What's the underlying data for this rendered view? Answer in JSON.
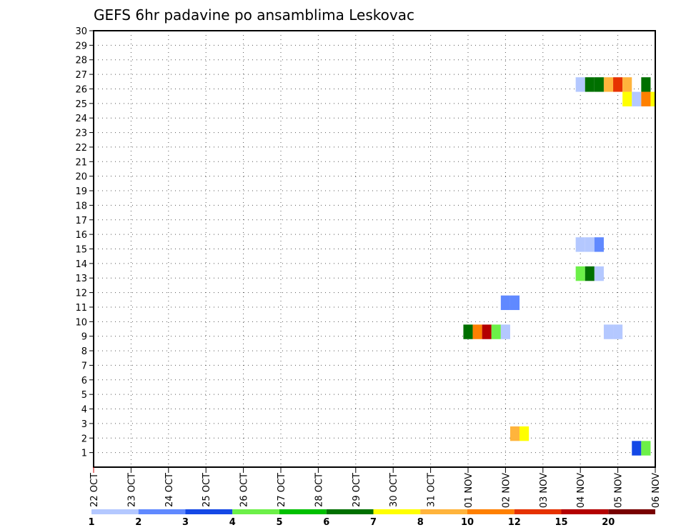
{
  "chart_data": {
    "type": "heatmap",
    "title": "GEFS 6hr padavine po ansamblima Leskovac",
    "xlabel": "",
    "ylabel": "",
    "x_unit": "days since 22 OCT 00Z (6-hourly steps)",
    "xlim": [
      0,
      15
    ],
    "ylim": [
      0,
      30
    ],
    "x_tick_labels": [
      "22 OCT",
      "23 OCT",
      "24 OCT",
      "25 OCT",
      "26 OCT",
      "27 OCT",
      "28 OCT",
      "29 OCT",
      "30 OCT",
      "31 OCT",
      "01 NOV",
      "02 NOV",
      "03 NOV",
      "04 NOV",
      "05 NOV",
      "06 NOV"
    ],
    "y_ticks": [
      1,
      2,
      3,
      4,
      5,
      6,
      7,
      8,
      9,
      10,
      11,
      12,
      13,
      14,
      15,
      16,
      17,
      18,
      19,
      20,
      21,
      22,
      23,
      24,
      25,
      26,
      27,
      28,
      29,
      30
    ],
    "grid": true,
    "colorbar": {
      "labels": [
        "1",
        "2",
        "3",
        "4",
        "5",
        "6",
        "7",
        "8",
        "10",
        "12",
        "15",
        "20"
      ],
      "colors": [
        "#b4c8ff",
        "#6089ff",
        "#1448e6",
        "#6cf048",
        "#00c000",
        "#007000",
        "#ffff00",
        "#ffb43c",
        "#ff8000",
        "#e63200",
        "#b40000",
        "#780000"
      ],
      "bounds": [
        1,
        2,
        3,
        4,
        5,
        6,
        7,
        8,
        10,
        12,
        15,
        20
      ]
    },
    "cells": [
      {
        "t": 13.0,
        "member": 26,
        "value": 1.5
      },
      {
        "t": 13.25,
        "member": 26,
        "value": 6.5
      },
      {
        "t": 13.5,
        "member": 26,
        "value": 6.5
      },
      {
        "t": 13.75,
        "member": 26,
        "value": 9
      },
      {
        "t": 14.0,
        "member": 26,
        "value": 13
      },
      {
        "t": 14.25,
        "member": 26,
        "value": 9
      },
      {
        "t": 14.75,
        "member": 26,
        "value": 6.5
      },
      {
        "t": 14.25,
        "member": 25,
        "value": 7.5
      },
      {
        "t": 14.5,
        "member": 25,
        "value": 1.5
      },
      {
        "t": 14.75,
        "member": 25,
        "value": 11
      },
      {
        "t": 15.0,
        "member": 25,
        "value": 7.5
      },
      {
        "t": 13.0,
        "member": 15,
        "value": 1.5
      },
      {
        "t": 13.25,
        "member": 15,
        "value": 1.5
      },
      {
        "t": 13.5,
        "member": 15,
        "value": 2.5
      },
      {
        "t": 13.0,
        "member": 13,
        "value": 4.5
      },
      {
        "t": 13.25,
        "member": 13,
        "value": 6.5
      },
      {
        "t": 13.5,
        "member": 13,
        "value": 1.5
      },
      {
        "t": 11.0,
        "member": 11,
        "value": 2.5
      },
      {
        "t": 11.25,
        "member": 11,
        "value": 2.5
      },
      {
        "t": 10.0,
        "member": 9,
        "value": 6.5
      },
      {
        "t": 10.25,
        "member": 9,
        "value": 11
      },
      {
        "t": 10.5,
        "member": 9,
        "value": 17
      },
      {
        "t": 10.75,
        "member": 9,
        "value": 4.5
      },
      {
        "t": 11.0,
        "member": 9,
        "value": 1.5
      },
      {
        "t": 13.75,
        "member": 9,
        "value": 1.5
      },
      {
        "t": 14.0,
        "member": 9,
        "value": 1.5
      },
      {
        "t": 11.25,
        "member": 2,
        "value": 9
      },
      {
        "t": 11.5,
        "member": 2,
        "value": 7.5
      },
      {
        "t": 14.5,
        "member": 1,
        "value": 3.5
      },
      {
        "t": 14.75,
        "member": 1,
        "value": 4.5
      }
    ]
  }
}
